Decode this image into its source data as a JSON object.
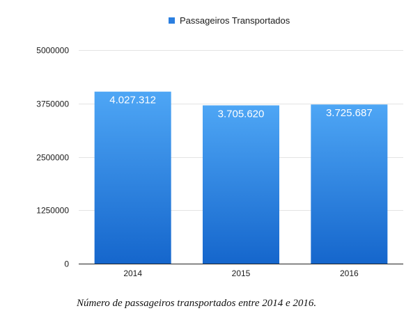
{
  "colors": {
    "bar_top": "#4ea6f5",
    "bar_bottom": "#1566cc",
    "grid": "#e3e3e3",
    "axis": "#222222",
    "legend_marker": "#2b7fe0"
  },
  "caption": "Número de passageiros transportados entre 2014 e 2016.",
  "chart_data": {
    "type": "bar",
    "title": "",
    "xlabel": "",
    "ylabel": "",
    "categories": [
      "2014",
      "2015",
      "2016"
    ],
    "series": [
      {
        "name": "Passageiros Transportados",
        "values": [
          4027312,
          3705620,
          3725687
        ]
      }
    ],
    "data_labels": [
      "4.027.312",
      "3.705.620",
      "3.725.687"
    ],
    "y_ticks": [
      "0",
      "1250000",
      "2500000",
      "3750000",
      "5000000"
    ],
    "ylim": [
      0,
      5000000
    ],
    "grid": true,
    "legend_position": "top"
  }
}
